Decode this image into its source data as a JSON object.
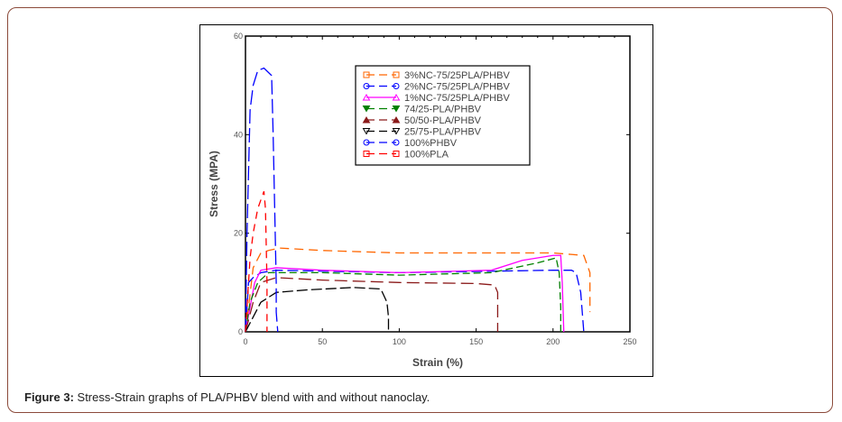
{
  "caption": {
    "label": "Figure 3:",
    "text": " Stress-Strain graphs of PLA/PHBV blend with and without nanoclay."
  },
  "chart_data": {
    "type": "line",
    "xlabel": "Strain (%)",
    "ylabel": "Stress (MPA)",
    "xlim": [
      0,
      250
    ],
    "ylim": [
      0,
      60
    ],
    "xticks": [
      0,
      50,
      100,
      150,
      200,
      250
    ],
    "yticks": [
      0,
      20,
      40,
      60
    ],
    "grid": false,
    "legend_placement": "top-center",
    "series": [
      {
        "name": "3%NC-75/25PLA/PHBV",
        "color": "#ff6600",
        "marker": "square",
        "dash": "10,6",
        "points": [
          [
            0,
            0
          ],
          [
            2,
            5
          ],
          [
            5,
            13
          ],
          [
            10,
            16
          ],
          [
            15,
            16.5
          ],
          [
            22,
            17
          ],
          [
            50,
            16.5
          ],
          [
            100,
            16
          ],
          [
            200,
            16
          ],
          [
            220,
            15.5
          ],
          [
            224,
            12
          ],
          [
            224,
            4
          ]
        ]
      },
      {
        "name": "2%NC-75/25PLA/PHBV",
        "color": "#0000ff",
        "marker": "circle",
        "dash": "12,5",
        "points": [
          [
            0,
            0
          ],
          [
            2,
            10
          ],
          [
            5,
            11
          ],
          [
            10,
            12
          ],
          [
            20,
            12.5
          ],
          [
            100,
            12
          ],
          [
            200,
            12.5
          ],
          [
            212,
            12.5
          ],
          [
            215,
            12
          ],
          [
            218,
            8
          ],
          [
            220,
            0
          ]
        ]
      },
      {
        "name": "1%NC-75/25PLA/PHBV",
        "color": "#ff00ff",
        "marker": "triangle-up",
        "dash": "",
        "points": [
          [
            0,
            0
          ],
          [
            3,
            5
          ],
          [
            6,
            10
          ],
          [
            10,
            12.5
          ],
          [
            20,
            13
          ],
          [
            50,
            12.5
          ],
          [
            100,
            12
          ],
          [
            160,
            12.5
          ],
          [
            180,
            14.5
          ],
          [
            200,
            15.5
          ],
          [
            205,
            15.5
          ],
          [
            206,
            10
          ],
          [
            207,
            0
          ]
        ]
      },
      {
        "name": "74/25-PLA/PHBV",
        "color": "#008000",
        "marker": "triangle-down-filled",
        "dash": "8,4",
        "points": [
          [
            0,
            0
          ],
          [
            3,
            6
          ],
          [
            8,
            10
          ],
          [
            15,
            12
          ],
          [
            50,
            12
          ],
          [
            100,
            11.5
          ],
          [
            160,
            12
          ],
          [
            190,
            14
          ],
          [
            202,
            15
          ],
          [
            204,
            12
          ],
          [
            205,
            5
          ],
          [
            205,
            0
          ]
        ]
      },
      {
        "name": "50/50-PLA/PHBV",
        "color": "#8b1a1a",
        "marker": "triangle-up-filled",
        "dash": "14,6",
        "points": [
          [
            0,
            0
          ],
          [
            5,
            6
          ],
          [
            10,
            10
          ],
          [
            20,
            11
          ],
          [
            50,
            10.5
          ],
          [
            100,
            10
          ],
          [
            150,
            9.8
          ],
          [
            162,
            9.5
          ],
          [
            164,
            8
          ],
          [
            164,
            0
          ]
        ]
      },
      {
        "name": "25/75-PLA/PHBV",
        "color": "#000000",
        "marker": "triangle-down",
        "dash": "12,4",
        "points": [
          [
            0,
            0
          ],
          [
            5,
            3
          ],
          [
            10,
            6
          ],
          [
            20,
            8
          ],
          [
            40,
            8.5
          ],
          [
            70,
            9
          ],
          [
            88,
            8.7
          ],
          [
            92,
            6
          ],
          [
            93,
            3
          ],
          [
            93,
            0
          ]
        ]
      },
      {
        "name": "100%PHBV",
        "color": "#0000ff",
        "marker": "circle",
        "dash": "16,5",
        "points": [
          [
            0,
            0
          ],
          [
            1,
            20
          ],
          [
            3,
            45
          ],
          [
            5,
            50
          ],
          [
            8,
            53
          ],
          [
            12,
            53.5
          ],
          [
            17,
            52
          ],
          [
            18,
            40
          ],
          [
            19,
            25
          ],
          [
            20,
            10
          ],
          [
            20,
            4
          ],
          [
            21,
            0
          ]
        ]
      },
      {
        "name": "100%PLA",
        "color": "#ff0000",
        "marker": "square",
        "dash": "8,6",
        "points": [
          [
            0,
            0
          ],
          [
            3,
            15
          ],
          [
            5,
            20
          ],
          [
            8,
            25
          ],
          [
            12,
            28.5
          ],
          [
            13,
            25
          ],
          [
            14,
            10
          ],
          [
            14,
            0
          ]
        ]
      }
    ]
  }
}
